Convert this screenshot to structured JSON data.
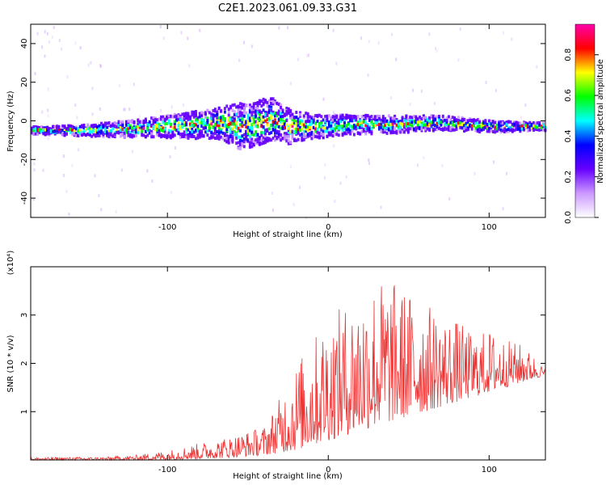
{
  "title": "C2E1.2023.061.09.33.G31",
  "chart_data": [
    {
      "type": "heatmap",
      "xlabel": "Height of straight line (km)",
      "ylabel": "Frequency (Hz)",
      "xlim": [
        -185,
        135
      ],
      "ylim": [
        -50,
        50
      ],
      "x_ticks": [
        -100,
        0,
        100
      ],
      "y_ticks": [
        -40,
        -20,
        0,
        20,
        40
      ],
      "colorbar": {
        "label": "Normalized spectral amplitude",
        "range": [
          0,
          0.95
        ],
        "ticks": [
          0.0,
          0.2,
          0.4,
          0.6,
          0.8
        ],
        "colors": [
          "#ffffff",
          "#cc99ff",
          "#6600ff",
          "#0000ff",
          "#00ffff",
          "#00ff00",
          "#ffff00",
          "#ff0000",
          "#ff00aa"
        ]
      },
      "band": {
        "center_points": [
          [
            -180,
            -5
          ],
          [
            -150,
            -5
          ],
          [
            -120,
            -4
          ],
          [
            -100,
            -3
          ],
          [
            -80,
            -2
          ],
          [
            -65,
            -1
          ],
          [
            -55,
            -3
          ],
          [
            -45,
            -2
          ],
          [
            -35,
            1
          ],
          [
            -25,
            -3
          ],
          [
            -15,
            -3
          ],
          [
            -5,
            -3
          ],
          [
            10,
            -2
          ],
          [
            40,
            -2
          ],
          [
            70,
            -1
          ],
          [
            100,
            -3
          ],
          [
            132,
            -3
          ]
        ],
        "half_width_points": [
          [
            -180,
            2
          ],
          [
            -150,
            3
          ],
          [
            -110,
            5
          ],
          [
            -70,
            8
          ],
          [
            -55,
            12
          ],
          [
            -40,
            12
          ],
          [
            -30,
            10
          ],
          [
            -20,
            8
          ],
          [
            -10,
            6
          ],
          [
            20,
            5
          ],
          [
            60,
            4
          ],
          [
            100,
            3
          ],
          [
            132,
            2
          ]
        ],
        "peak_amplitude": 0.9
      }
    },
    {
      "type": "line",
      "xlabel": "Height of straight line (km)",
      "ylabel": "SNR (10 * v/v)",
      "y_multiplier": "(x10⁴)",
      "xlim": [
        -185,
        135
      ],
      "ylim": [
        0,
        4
      ],
      "x_ticks": [
        -100,
        0,
        100
      ],
      "y_ticks": [
        1,
        2,
        3
      ],
      "line_color": "#ee3333",
      "envelope": {
        "x": [
          -185,
          -160,
          -140,
          -120,
          -100,
          -80,
          -60,
          -40,
          -30,
          -20,
          -10,
          0,
          10,
          20,
          30,
          40,
          50,
          60,
          70,
          80,
          90,
          100,
          110,
          120,
          130,
          135
        ],
        "low": [
          0.0,
          0.0,
          0.0,
          0.0,
          0.0,
          0.02,
          0.05,
          0.1,
          0.15,
          0.2,
          0.3,
          0.4,
          0.5,
          0.6,
          0.7,
          0.8,
          0.9,
          1.0,
          1.1,
          1.2,
          1.3,
          1.4,
          1.5,
          1.6,
          1.7,
          1.75
        ],
        "high": [
          0.05,
          0.06,
          0.06,
          0.1,
          0.2,
          0.35,
          0.5,
          0.7,
          1.3,
          2.0,
          2.5,
          3.0,
          3.2,
          3.5,
          3.8,
          3.7,
          3.5,
          3.3,
          3.0,
          2.9,
          2.6,
          2.7,
          2.5,
          2.4,
          2.1,
          1.85
        ]
      }
    }
  ]
}
